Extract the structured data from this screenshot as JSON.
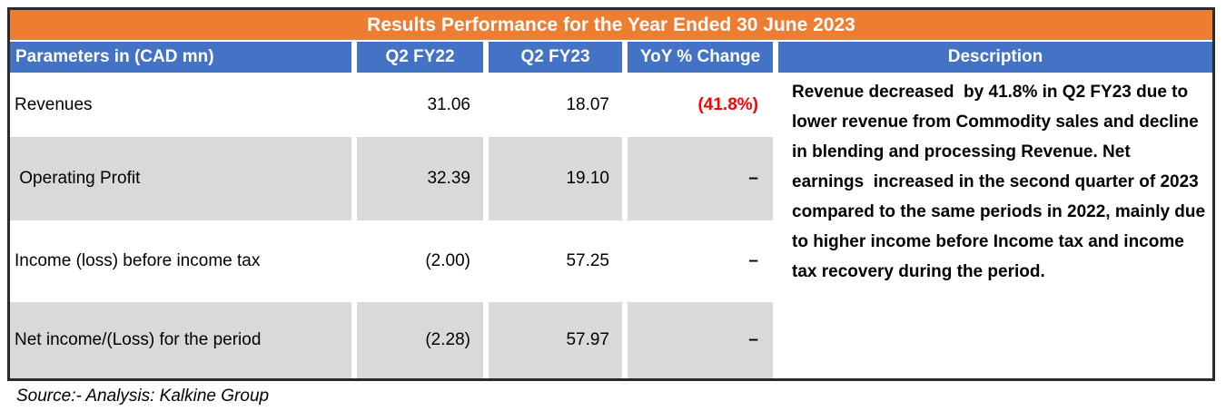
{
  "title": "Results Performance for the Year Ended 30 June 2023",
  "table": {
    "columns": [
      "Parameters in (CAD mn)",
      "Q2 FY22",
      "Q2 FY23",
      "YoY % Change",
      "Description"
    ],
    "rows": [
      {
        "parameter": "Revenues",
        "q2_fy22": "31.06",
        "q2_fy23": "18.07",
        "yoy_change": "(41.8%)"
      },
      {
        "parameter": " Operating Profit",
        "q2_fy22": "32.39",
        "q2_fy23": "19.10",
        "yoy_change": "–"
      },
      {
        "parameter": "Income (loss) before income tax",
        "q2_fy22": "(2.00)",
        "q2_fy23": "57.25",
        "yoy_change": "–"
      },
      {
        "parameter": "Net income/(Loss) for the period",
        "q2_fy22": "(2.28)",
        "q2_fy23": "57.97",
        "yoy_change": "–"
      }
    ],
    "description": "Revenue decreased  by 41.8% in Q2 FY23 due to lower revenue from Commodity sales and decline in blending and processing Revenue. Net earnings  increased in the second quarter of 2023 compared to the same periods in 2022, mainly due to higher income before Income tax and income tax recovery during the period."
  },
  "source_note": "Source:- Analysis: Kalkine Group",
  "colors": {
    "title_bar": "#ED7D31",
    "header_row": "#4472C4",
    "shaded_row": "#D9D9D9",
    "negative_value": "#FF0000",
    "border": "#2b2b2b"
  }
}
